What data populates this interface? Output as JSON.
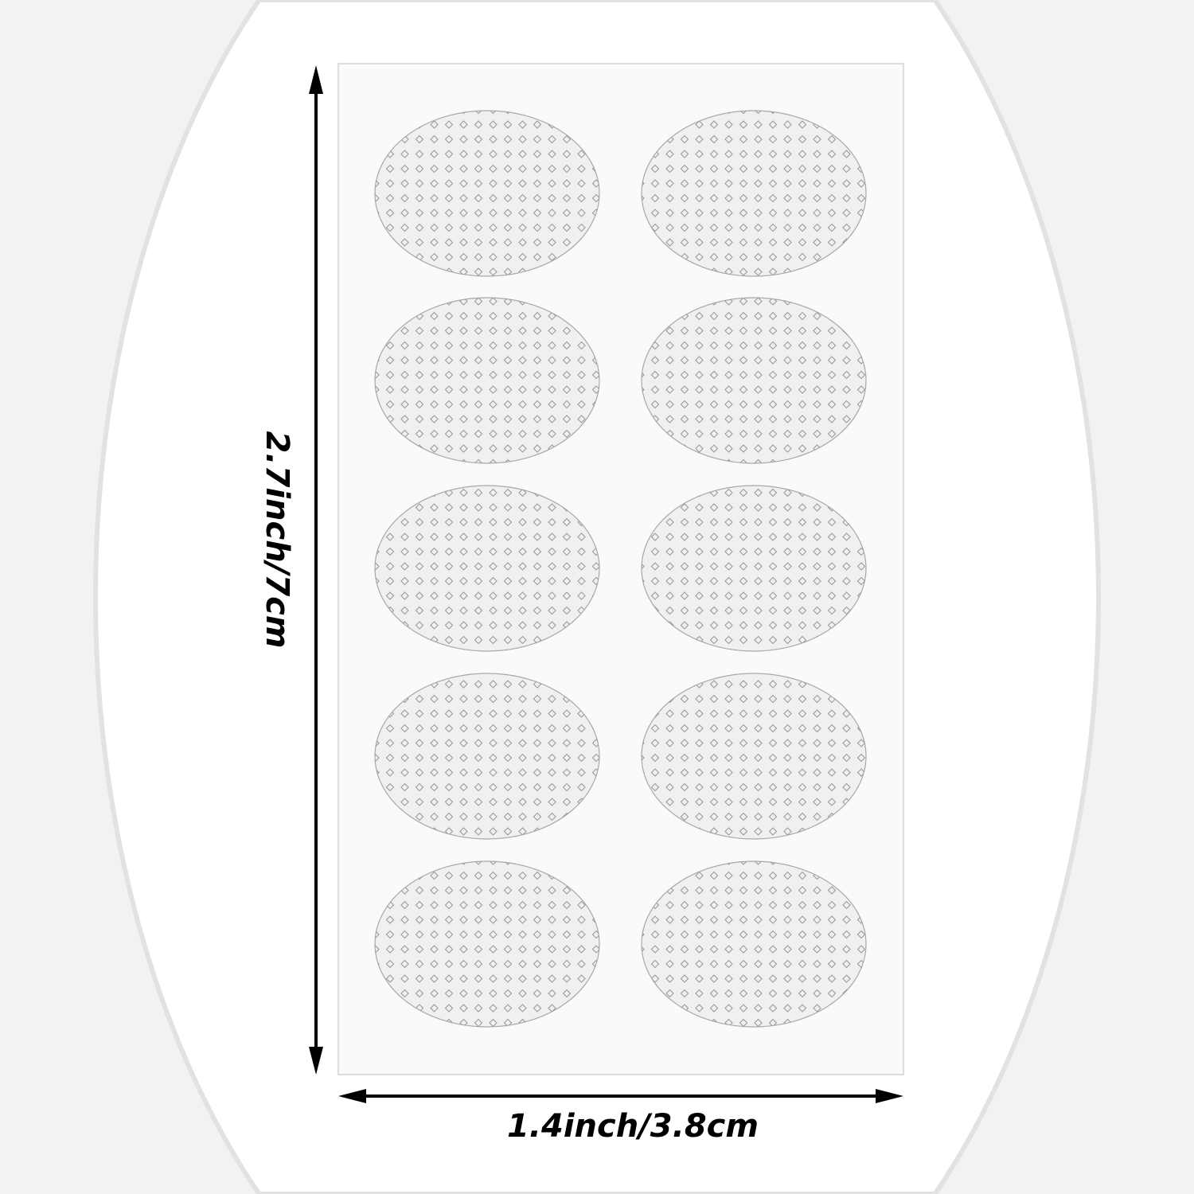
{
  "dimensions": {
    "height_label": "2.7inch/7cm",
    "width_label": "1.4inch/3.8cm"
  },
  "sheet": {
    "pad_rows": 5,
    "pad_columns": 2
  },
  "colors": {
    "background": "#f2f2f2",
    "spotlight": "#ffffff",
    "arrow": "#000000",
    "pad_fill": "#f0f0f0",
    "pad_outline": "#a8a8a8"
  }
}
